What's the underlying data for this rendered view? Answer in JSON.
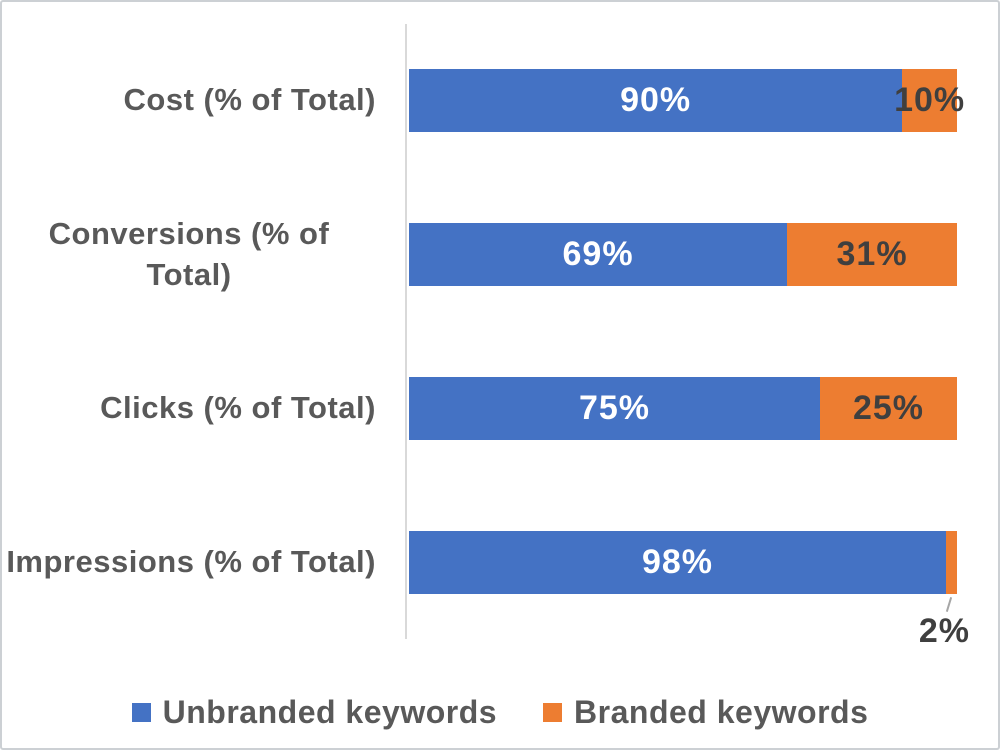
{
  "chart_data": {
    "type": "bar",
    "orientation": "horizontal",
    "stacked": true,
    "title": "",
    "xlabel": "",
    "ylabel": "",
    "categories": [
      "Cost (% of Total)",
      "Conversions (% of Total)",
      "Clicks (% of Total)",
      "Impressions (% of Total)"
    ],
    "series": [
      {
        "name": "Unbranded keywords",
        "color": "#4472C4",
        "label_color": "#FFFFFF",
        "values": [
          90,
          69,
          75,
          98
        ],
        "labels": [
          "90%",
          "69%",
          "75%",
          "98%"
        ]
      },
      {
        "name": "Branded keywords",
        "color": "#ED7D31",
        "label_color": "#3F3F3F",
        "values": [
          10,
          31,
          25,
          2
        ],
        "labels": [
          "10%",
          "31%",
          "25%",
          "2%"
        ]
      }
    ],
    "axis": {
      "x_min": 0,
      "x_max": 100,
      "gridlines": false,
      "unit": "percent"
    },
    "legend_position": "bottom",
    "callout": {
      "category_index": 3,
      "series_index": 1,
      "label": "2%"
    }
  },
  "legend": {
    "items": [
      {
        "label": "Unbranded keywords",
        "color": "#4472C4"
      },
      {
        "label": "Branded keywords",
        "color": "#ED7D31"
      }
    ]
  },
  "colors": {
    "category_text": "#595959",
    "legend_text": "#595959",
    "axis_line": "#D9D9D9",
    "leader_line": "#A6A6A6",
    "callout_text": "#3F3F3F",
    "background": "#FFFFFF",
    "border": "#CCD0D4"
  }
}
